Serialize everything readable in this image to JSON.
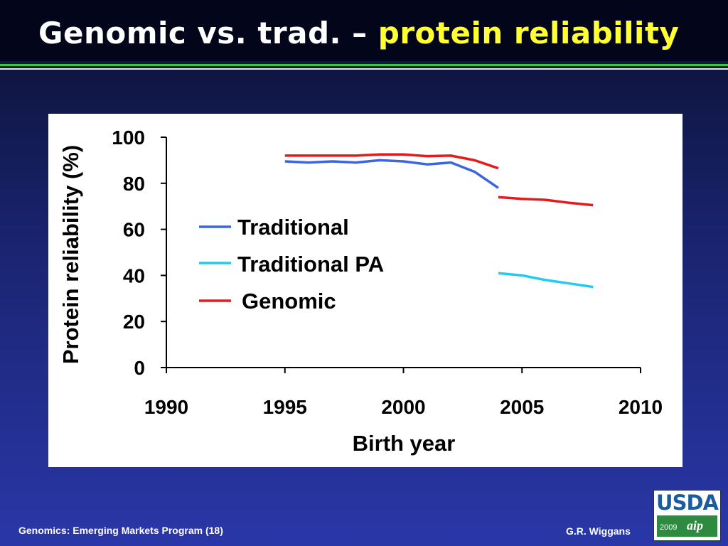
{
  "slide": {
    "title_main": "Genomic vs. trad. –",
    "title_highlight": "protein reliability",
    "footer_left": "Genomics: Emerging Markets Program (18)",
    "footer_right": "G.R. Wiggans",
    "logo": {
      "name": "USDA",
      "year": "2009",
      "mark": "aip"
    }
  },
  "colors": {
    "background": "#1a2470",
    "title": "#ffffff",
    "title_highlight": "#ffff33",
    "rule": "#33cc33",
    "traditional": "#3a66e0",
    "traditional_pa": "#22ccf0",
    "genomic": "#e61a1a"
  },
  "chart_data": {
    "type": "line",
    "xlabel": "Birth year",
    "ylabel": "Protein reliability (%)",
    "xlim": [
      1990,
      2010
    ],
    "ylim": [
      0,
      100
    ],
    "x_ticks": [
      1990,
      1995,
      2000,
      2005,
      2010
    ],
    "y_ticks": [
      0,
      20,
      40,
      60,
      80,
      100
    ],
    "grid": false,
    "legend_position": "center-left",
    "series": [
      {
        "name": "Traditional",
        "color": "#3a66e0",
        "x": [
          1995,
          1996,
          1997,
          1998,
          1999,
          2000,
          2001,
          2002,
          2003,
          2004
        ],
        "y": [
          89.5,
          89.0,
          89.5,
          89.0,
          90.0,
          89.5,
          88.2,
          89.0,
          85.0,
          78.0
        ]
      },
      {
        "name": "Traditional PA",
        "color": "#22ccf0",
        "x": [
          2004,
          2005,
          2006,
          2007,
          2008
        ],
        "y": [
          41.0,
          40.0,
          38.0,
          36.5,
          35.0
        ]
      },
      {
        "name": "Genomic",
        "color": "#e61a1a",
        "segments": [
          {
            "x": [
              1995,
              1996,
              1997,
              1998,
              1999,
              2000,
              2001,
              2002,
              2003,
              2004
            ],
            "y": [
              92.0,
              92.0,
              92.0,
              92.0,
              92.5,
              92.5,
              91.8,
              92.0,
              90.0,
              86.5
            ]
          },
          {
            "x": [
              2004,
              2005,
              2006,
              2007,
              2008
            ],
            "y": [
              74.0,
              73.2,
              72.8,
              71.5,
              70.5
            ]
          }
        ]
      }
    ]
  }
}
